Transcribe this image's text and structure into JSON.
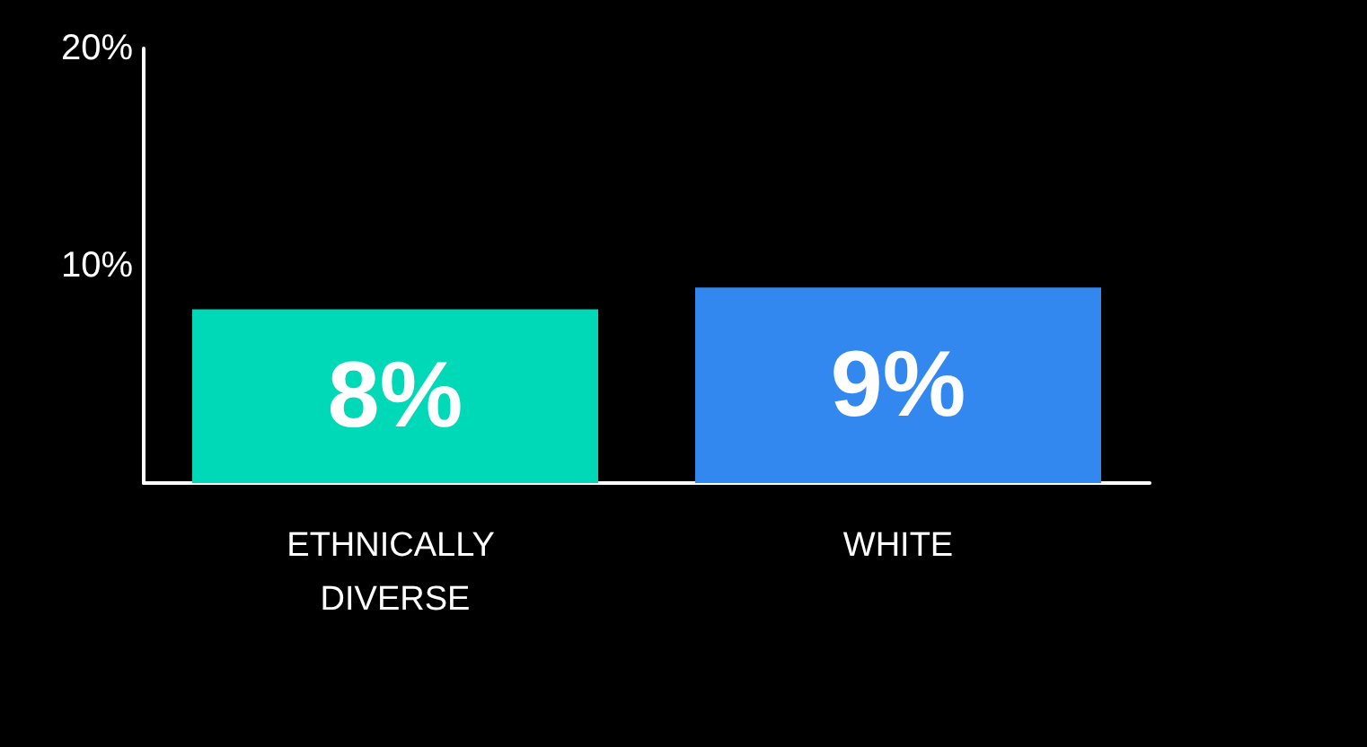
{
  "chart_data": {
    "type": "bar",
    "categories": [
      "ETHNICALLY DIVERSE",
      "WHITE"
    ],
    "values": [
      8,
      9
    ],
    "colors": [
      "#00d9b8",
      "#3388f0"
    ],
    "value_labels": [
      "8%",
      "9%"
    ],
    "ylim": [
      0,
      20
    ],
    "yticks": [
      {
        "value": 10,
        "label": "10%"
      },
      {
        "value": 20,
        "label": "20%"
      }
    ],
    "grid": false
  }
}
